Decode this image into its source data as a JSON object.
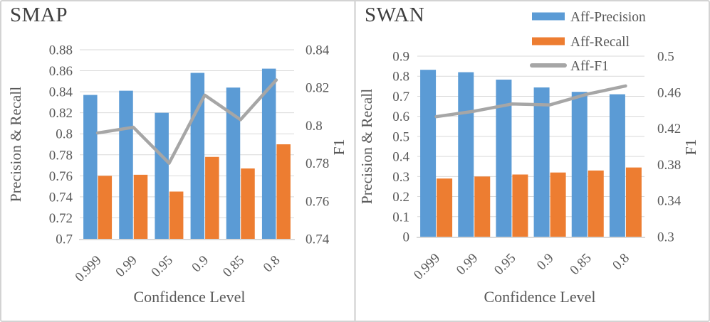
{
  "figure": {
    "background": "#ffffff",
    "border_color": "#d3d3d3",
    "divider_color": "#dedede"
  },
  "styles": {
    "tick_text_color": "#595959",
    "axis_title_color": "#595959",
    "chart_title_color": "#3f3f3f",
    "gridline_color": "#d9d9d9",
    "axis_line_color": "#d9d9d9",
    "precision_color": "#5B9BD5",
    "recall_color": "#ED7D31",
    "f1_color": "#A6A6A6"
  },
  "legend": {
    "position": "top-right-of-swan-chart",
    "items": [
      {
        "label": "Aff-Precision",
        "swatch": "bar",
        "color": "#5B9BD5"
      },
      {
        "label": "Aff-Recall",
        "swatch": "bar",
        "color": "#ED7D31"
      },
      {
        "label": "Aff-F1",
        "swatch": "line",
        "color": "#A6A6A6"
      }
    ]
  },
  "chart_data": [
    {
      "type": "bar",
      "title": "SMAP",
      "xlabel": "Confidence Level",
      "ylabel_left": "Precision & Recall",
      "ylabel_right": "F1",
      "grid": true,
      "categories": [
        "0.999",
        "0.99",
        "0.95",
        "0.9",
        "0.85",
        "0.8"
      ],
      "series": [
        {
          "name": "Aff-Precision",
          "kind": "bar",
          "axis": "left",
          "color": "#5B9BD5",
          "values": [
            0.837,
            0.841,
            0.82,
            0.858,
            0.844,
            0.862
          ]
        },
        {
          "name": "Aff-Recall",
          "kind": "bar",
          "axis": "left",
          "color": "#ED7D31",
          "values": [
            0.76,
            0.761,
            0.745,
            0.778,
            0.767,
            0.79
          ]
        },
        {
          "name": "Aff-F1",
          "kind": "line",
          "axis": "right",
          "color": "#A6A6A6",
          "values": [
            0.796,
            0.799,
            0.78,
            0.816,
            0.803,
            0.824
          ]
        }
      ],
      "left_axis": {
        "min": 0.7,
        "max": 0.88,
        "tick_labels": [
          "0.7",
          "0.72",
          "0.74",
          "0.76",
          "0.78",
          "0.8",
          "0.82",
          "0.84",
          "0.86",
          "0.88"
        ]
      },
      "right_axis": {
        "min": 0.74,
        "max": 0.84,
        "tick_labels": [
          "0.74",
          "0.76",
          "0.78",
          "0.8",
          "0.82",
          "0.84"
        ]
      }
    },
    {
      "type": "bar",
      "title": "SWAN",
      "xlabel": "Confidence Level",
      "ylabel_left": "Precision & Recall",
      "ylabel_right": "F1",
      "grid": true,
      "categories": [
        "0.999",
        "0.99",
        "0.95",
        "0.9",
        "0.85",
        "0.8"
      ],
      "series": [
        {
          "name": "Aff-Precision",
          "kind": "bar",
          "axis": "left",
          "color": "#5B9BD5",
          "values": [
            0.832,
            0.82,
            0.783,
            0.744,
            0.722,
            0.71
          ]
        },
        {
          "name": "Aff-Recall",
          "kind": "bar",
          "axis": "left",
          "color": "#ED7D31",
          "values": [
            0.29,
            0.3,
            0.31,
            0.32,
            0.33,
            0.345
          ]
        },
        {
          "name": "Aff-F1",
          "kind": "line",
          "axis": "right",
          "color": "#A6A6A6",
          "values": [
            0.433,
            0.439,
            0.447,
            0.446,
            0.458,
            0.467
          ]
        }
      ],
      "left_axis": {
        "min": 0,
        "max": 0.9,
        "tick_labels": [
          "0",
          "0.1",
          "0.2",
          "0.3",
          "0.4",
          "0.5",
          "0.6",
          "0.7",
          "0.8",
          "0.9"
        ]
      },
      "right_axis": {
        "min": 0.3,
        "max": 0.5,
        "tick_labels": [
          "0.3",
          "0.34",
          "0.38",
          "0.42",
          "0.46",
          "0.5"
        ]
      }
    }
  ]
}
